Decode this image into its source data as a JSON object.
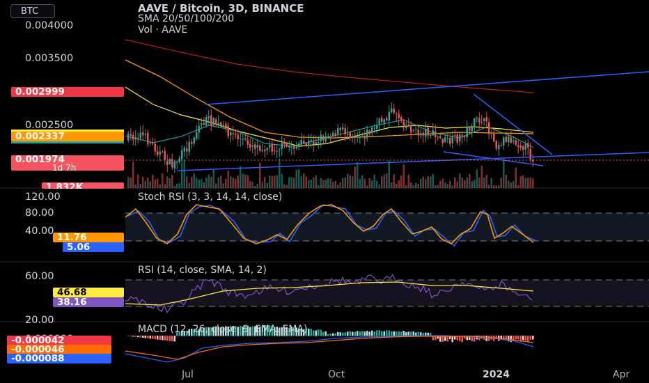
{
  "symbol_chip": "BTC",
  "legend": {
    "title": "AAVE / Bitcoin, 3D, BINANCE",
    "sma": "SMA 20/50/100/200",
    "volume": "Vol · AAVE"
  },
  "price_axis_labels": [
    "0.004000",
    "0.003500",
    "0.002500"
  ],
  "price_tags": {
    "sma200": {
      "value": "0.002999",
      "color": "#f23645"
    },
    "sma50": {
      "value": "0.002337",
      "color": "#ff9800"
    },
    "last": {
      "value": "0.001974",
      "color": "#f7525f"
    },
    "countdown": "1d 7h",
    "volume": {
      "value": "1.832K",
      "color": "#f7525f"
    }
  },
  "stoch_rsi": {
    "title": "Stoch RSI (3, 3, 14, 14, close)",
    "axis": [
      "120.00",
      "80.00",
      "40.00"
    ],
    "k_value": "11.76",
    "d_value": "5.06",
    "k_color": "#ff9800",
    "d_color": "#2962ff"
  },
  "rsi": {
    "title": "RSI (14, close, SMA, 14, 2)",
    "axis": [
      "60.00",
      "20.00"
    ],
    "ma_value": "46.68",
    "rsi_value": "38.16",
    "ma_color": "#ffeb3b",
    "rsi_color": "#7e57c2"
  },
  "macd": {
    "title": "MACD (12, 26, close, 9, EMA, EMA)",
    "axis_top": "0.000000",
    "hist_value": "-0.000042",
    "signal_value": "-0.000046",
    "macd_value": "-0.000088"
  },
  "time_axis": [
    "Jul",
    "Oct",
    "2024",
    "Apr"
  ],
  "colors": {
    "up": "#26a69a",
    "down": "#ef5350",
    "trend": "#2962ff",
    "bg": "#000000"
  }
}
